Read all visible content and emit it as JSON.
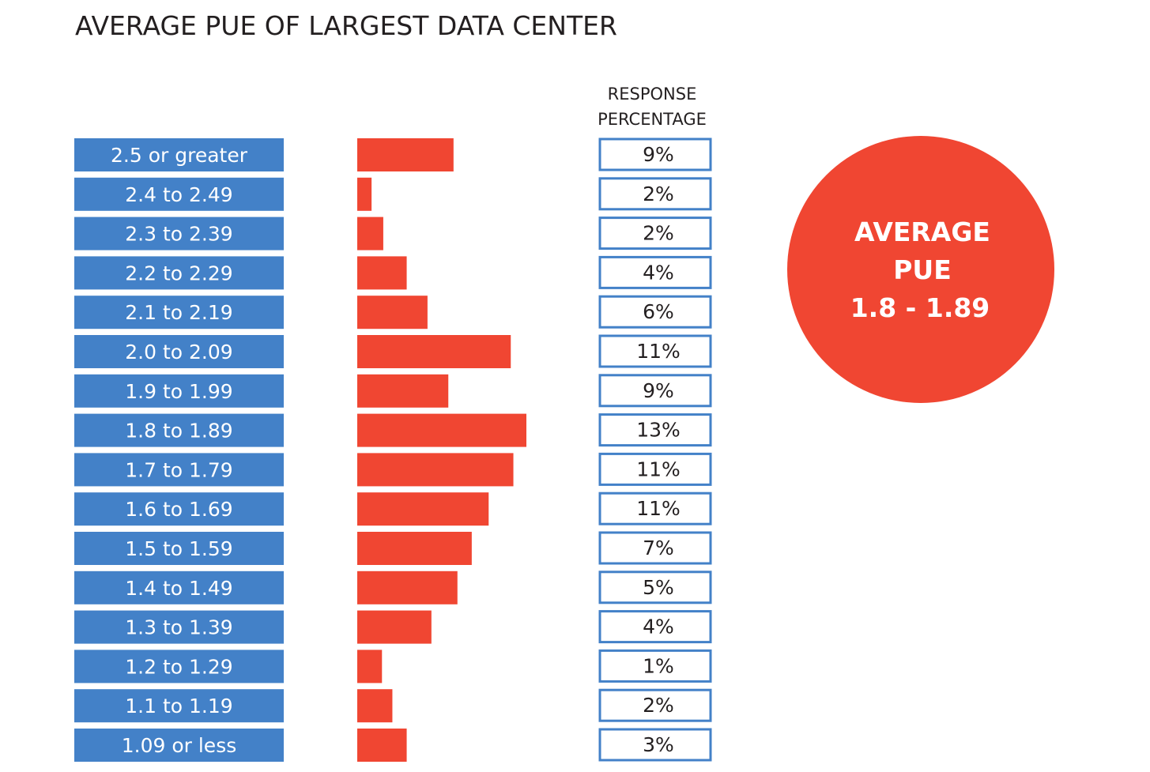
{
  "colors": {
    "category_box": "#4381c8",
    "bar": "#f04632",
    "pct_border": "#4381c8",
    "circle": "#f04632",
    "text_dark": "#231f20",
    "text_light": "#ffffff"
  },
  "chart_data": {
    "type": "bar",
    "orientation": "horizontal",
    "title": "AVERAGE PUE OF LARGEST DATA CENTER",
    "value_column_header": [
      "RESPONSE",
      "PERCENTAGE"
    ],
    "categories": [
      "2.5 or greater",
      "2.4 to 2.49",
      "2.3 to 2.39",
      "2.2 to 2.29",
      "2.1 to 2.19",
      "2.0 to 2.09",
      "1.9 to 1.99",
      "1.8 to 1.89",
      "1.7 to 1.79",
      "1.6 to 1.69",
      "1.5 to 1.59",
      "1.4 to 1.49",
      "1.3 to 1.39",
      "1.2 to 1.29",
      "1.1 to 1.19",
      "1.09 or less"
    ],
    "values": [
      9,
      2,
      2,
      4,
      6,
      11,
      9,
      13,
      11,
      11,
      7,
      5,
      4,
      1,
      2,
      3
    ],
    "value_labels": [
      "9%",
      "2%",
      "2%",
      "4%",
      "6%",
      "11%",
      "9%",
      "13%",
      "11%",
      "11%",
      "7%",
      "5%",
      "4%",
      "1%",
      "2%",
      "3%"
    ],
    "bar_display_values": [
      7.4,
      1.1,
      2.0,
      3.8,
      5.4,
      11.8,
      7.0,
      13.0,
      12.0,
      10.1,
      8.8,
      7.7,
      5.7,
      1.9,
      2.7,
      3.8
    ],
    "xlim": [
      0,
      13
    ],
    "grid": false,
    "legend": "none"
  },
  "callout": {
    "lines": [
      "AVERAGE",
      "PUE",
      "1.8 - 1.89"
    ]
  }
}
